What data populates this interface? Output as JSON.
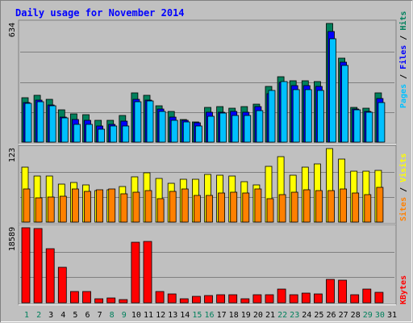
{
  "title": "Daily usage for November 2014",
  "colors": {
    "background": "#c0c0c0",
    "frame_light": "#ffffff",
    "frame_dark": "#808080",
    "title": "#0000ff",
    "grid": "#808080",
    "hits": "#00805c",
    "files": "#0000ff",
    "pages": "#00c0ff",
    "visits": "#ffff00",
    "sites": "#ff8000",
    "kbytes": "#ff0000",
    "weekday_label": "#000000",
    "weekend_label": "#00805c"
  },
  "right_labels": {
    "top": {
      "pages": "Pages",
      "files": "Files",
      "hits": "Hits",
      "sep": " / "
    },
    "middle": {
      "sites": "Sites",
      "visits": "Visits",
      "sep": " / "
    },
    "bottom": {
      "kbytes": "KBytes"
    }
  },
  "chart_data": [
    {
      "type": "bar",
      "panel": "hits-files-pages",
      "y_max_label": "634",
      "ylim": [
        0,
        634
      ],
      "categories": [
        "1",
        "2",
        "3",
        "4",
        "5",
        "6",
        "7",
        "8",
        "9",
        "10",
        "11",
        "12",
        "13",
        "14",
        "15",
        "16",
        "17",
        "18",
        "19",
        "20",
        "21",
        "22",
        "23",
        "24",
        "25",
        "26",
        "27",
        "28",
        "29",
        "30",
        "31"
      ],
      "weekend_days": [
        "1",
        "2",
        "8",
        "9",
        "15",
        "16",
        "22",
        "23",
        "29",
        "30"
      ],
      "series": [
        {
          "name": "Hits",
          "values": [
            236,
            248,
            228,
            174,
            150,
            146,
            116,
            115,
            143,
            262,
            248,
            193,
            164,
            121,
            107,
            184,
            189,
            181,
            188,
            204,
            297,
            348,
            327,
            326,
            322,
            634,
            449,
            186,
            179,
            262,
            0
          ]
        },
        {
          "name": "Files",
          "values": [
            210,
            225,
            200,
            135,
            120,
            117,
            88,
            95,
            110,
            230,
            225,
            175,
            135,
            115,
            102,
            158,
            158,
            162,
            160,
            190,
            260,
            320,
            300,
            300,
            298,
            590,
            425,
            175,
            165,
            235,
            0
          ]
        },
        {
          "name": "Pages",
          "values": [
            206,
            215,
            195,
            129,
            96,
            94,
            67,
            87,
            85,
            215,
            220,
            163,
            117,
            108,
            88,
            138,
            154,
            141,
            143,
            170,
            276,
            322,
            280,
            279,
            277,
            550,
            408,
            173,
            160,
            210,
            0
          ]
        }
      ]
    },
    {
      "type": "bar",
      "panel": "visits-sites",
      "y_max_label": "123",
      "ylim": [
        0,
        123
      ],
      "categories": [
        "1",
        "2",
        "3",
        "4",
        "5",
        "6",
        "7",
        "8",
        "9",
        "10",
        "11",
        "12",
        "13",
        "14",
        "15",
        "16",
        "17",
        "18",
        "19",
        "20",
        "21",
        "22",
        "23",
        "24",
        "25",
        "26",
        "27",
        "28",
        "29",
        "30",
        "31"
      ],
      "series": [
        {
          "name": "Visits",
          "values": [
            92,
            77,
            77,
            64,
            66,
            62,
            53,
            54,
            60,
            76,
            82,
            73,
            65,
            72,
            72,
            80,
            79,
            77,
            67,
            62,
            93,
            110,
            78,
            92,
            97,
            123,
            105,
            85,
            85,
            86,
            0
          ]
        },
        {
          "name": "Sites",
          "values": [
            55,
            41,
            42,
            43,
            56,
            52,
            54,
            56,
            47,
            50,
            53,
            39,
            52,
            55,
            45,
            45,
            48,
            50,
            48,
            55,
            39,
            46,
            50,
            54,
            53,
            53,
            55,
            49,
            46,
            58,
            0
          ]
        }
      ]
    },
    {
      "type": "bar",
      "panel": "kbytes",
      "y_max_label": "18589",
      "ylim": [
        0,
        18589
      ],
      "categories": [
        "1",
        "2",
        "3",
        "4",
        "5",
        "6",
        "7",
        "8",
        "9",
        "10",
        "11",
        "12",
        "13",
        "14",
        "15",
        "16",
        "17",
        "18",
        "19",
        "20",
        "21",
        "22",
        "23",
        "24",
        "25",
        "26",
        "27",
        "28",
        "29",
        "30",
        "31"
      ],
      "series": [
        {
          "name": "KBytes",
          "values": [
            18589,
            18300,
            13300,
            8700,
            2800,
            2800,
            1000,
            1100,
            700,
            14900,
            15200,
            2700,
            2100,
            1000,
            1600,
            1800,
            2000,
            2000,
            900,
            2000,
            2000,
            3300,
            2000,
            2400,
            2200,
            5700,
            5500,
            2000,
            3300,
            2500,
            0
          ]
        }
      ]
    }
  ]
}
